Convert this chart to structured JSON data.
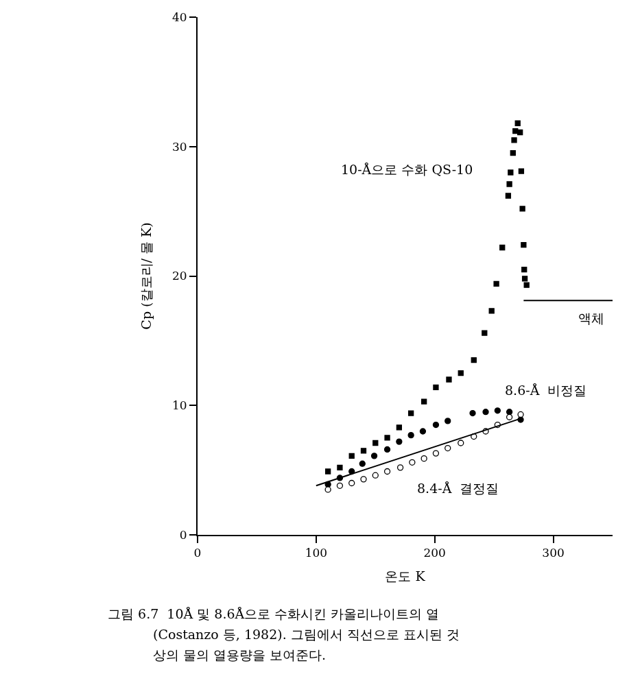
{
  "chart_data": {
    "type": "scatter",
    "xlabel": "온도 K",
    "ylabel": "Cp (칼로리/ 몰 K)",
    "xlim": [
      0,
      350
    ],
    "xticks": [
      0,
      100,
      200,
      300
    ],
    "ylim": [
      0,
      40
    ],
    "yticks": [
      0,
      10,
      20,
      30,
      40
    ],
    "legend": false,
    "series": [
      {
        "name": "10-Å으로 수화 QS-10",
        "marker": "square",
        "color": "#000000",
        "x": [
          110,
          120,
          130,
          140,
          150,
          160,
          170,
          180,
          191,
          201,
          212,
          222,
          233,
          242,
          248,
          252,
          257,
          262,
          263,
          264,
          266,
          267,
          268,
          270,
          272,
          273,
          274,
          275,
          275.5,
          276,
          277.5
        ],
        "values": [
          4.9,
          5.2,
          6.1,
          6.5,
          7.1,
          7.5,
          8.3,
          9.4,
          10.3,
          11.4,
          12.0,
          12.5,
          13.5,
          15.6,
          17.3,
          19.4,
          22.2,
          26.2,
          27.1,
          28.0,
          29.5,
          30.5,
          31.2,
          31.8,
          31.1,
          28.1,
          25.2,
          22.4,
          20.5,
          19.8,
          19.3
        ]
      },
      {
        "name": "8.6-Å  비정질",
        "marker": "circle",
        "color": "#000000",
        "x": [
          110,
          120,
          130,
          139,
          149,
          160,
          170,
          180,
          190,
          201,
          211,
          232,
          243,
          253,
          263,
          272.5
        ],
        "values": [
          3.9,
          4.4,
          4.9,
          5.5,
          6.1,
          6.6,
          7.2,
          7.7,
          8.0,
          8.5,
          8.8,
          9.4,
          9.5,
          9.6,
          9.5,
          8.9
        ]
      },
      {
        "name": "8.4-Å  결정질",
        "marker": "circle",
        "color": "#ffffff",
        "x": [
          110,
          120,
          130,
          140,
          150,
          160,
          171,
          181,
          191,
          201,
          211,
          222,
          233,
          243,
          253,
          263,
          272.5
        ],
        "values": [
          3.5,
          3.8,
          4.0,
          4.3,
          4.6,
          4.9,
          5.2,
          5.6,
          5.9,
          6.3,
          6.7,
          7.1,
          7.6,
          8.0,
          8.5,
          9.1,
          9.3
        ]
      },
      {
        "type": "line",
        "color": "#000000",
        "x": [
          100,
          273
        ],
        "values": [
          3.8,
          9.0
        ]
      },
      {
        "type": "line",
        "name": "액체",
        "color": "#000000",
        "x": [
          275,
          350
        ],
        "values": [
          18.1,
          18.1
        ]
      }
    ],
    "annotations": [
      "그림 6.7  10Å 및 8.6Å으로 수화시킨 카올리나이트의 열",
      "(Costanzo 등, 1982). 그림에서 직선으로 표시된 것",
      "상의 물의 열용량을 보여준다."
    ]
  }
}
